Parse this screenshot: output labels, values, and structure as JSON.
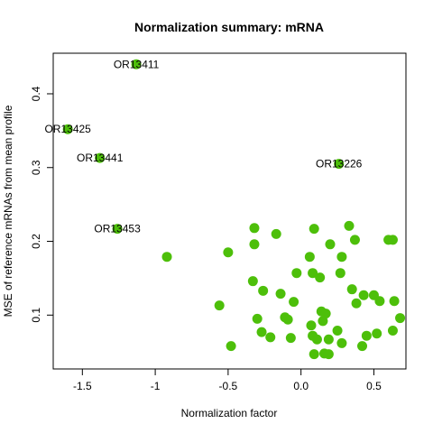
{
  "chart_data": {
    "type": "scatter",
    "title": "Normalization summary: mRNA",
    "xlabel": "Normalization factor",
    "ylabel": "MSE of reference mRNAs from mean profile",
    "xlim": [
      -1.7,
      0.72
    ],
    "ylim": [
      0.027,
      0.455
    ],
    "xticks": [
      "-1.5",
      "-1",
      "-0.5",
      "0.0",
      "0.5"
    ],
    "yticks": [
      "0.1",
      "0.2",
      "0.3",
      "0.4"
    ],
    "grid": false,
    "point_color": "#4dbf0a",
    "labeled_points": [
      {
        "x": -1.13,
        "y": 0.44,
        "label": "OR13411"
      },
      {
        "x": -1.6,
        "y": 0.352,
        "label": "OR13425"
      },
      {
        "x": -1.38,
        "y": 0.313,
        "label": "OR13441"
      },
      {
        "x": 0.26,
        "y": 0.305,
        "label": "OR13226"
      },
      {
        "x": -1.26,
        "y": 0.217,
        "label": "OR13453"
      }
    ],
    "points": [
      {
        "x": -0.92,
        "y": 0.179
      },
      {
        "x": -0.56,
        "y": 0.113
      },
      {
        "x": -0.5,
        "y": 0.185
      },
      {
        "x": -0.48,
        "y": 0.058
      },
      {
        "x": -0.33,
        "y": 0.146
      },
      {
        "x": -0.32,
        "y": 0.218
      },
      {
        "x": -0.32,
        "y": 0.196
      },
      {
        "x": -0.3,
        "y": 0.095
      },
      {
        "x": -0.27,
        "y": 0.077
      },
      {
        "x": -0.26,
        "y": 0.133
      },
      {
        "x": -0.21,
        "y": 0.07
      },
      {
        "x": -0.17,
        "y": 0.21
      },
      {
        "x": -0.14,
        "y": 0.129
      },
      {
        "x": -0.11,
        "y": 0.097
      },
      {
        "x": -0.09,
        "y": 0.094
      },
      {
        "x": -0.07,
        "y": 0.069
      },
      {
        "x": -0.05,
        "y": 0.118
      },
      {
        "x": -0.03,
        "y": 0.157
      },
      {
        "x": 0.06,
        "y": 0.179
      },
      {
        "x": 0.07,
        "y": 0.086
      },
      {
        "x": 0.08,
        "y": 0.157
      },
      {
        "x": 0.09,
        "y": 0.217
      },
      {
        "x": 0.08,
        "y": 0.072
      },
      {
        "x": 0.09,
        "y": 0.047
      },
      {
        "x": 0.11,
        "y": 0.067
      },
      {
        "x": 0.13,
        "y": 0.151
      },
      {
        "x": 0.14,
        "y": 0.105
      },
      {
        "x": 0.15,
        "y": 0.092
      },
      {
        "x": 0.16,
        "y": 0.048
      },
      {
        "x": 0.17,
        "y": 0.102
      },
      {
        "x": 0.19,
        "y": 0.047
      },
      {
        "x": 0.19,
        "y": 0.067
      },
      {
        "x": 0.2,
        "y": 0.196
      },
      {
        "x": 0.25,
        "y": 0.079
      },
      {
        "x": 0.27,
        "y": 0.157
      },
      {
        "x": 0.28,
        "y": 0.179
      },
      {
        "x": 0.28,
        "y": 0.062
      },
      {
        "x": 0.33,
        "y": 0.221
      },
      {
        "x": 0.35,
        "y": 0.135
      },
      {
        "x": 0.37,
        "y": 0.202
      },
      {
        "x": 0.38,
        "y": 0.116
      },
      {
        "x": 0.42,
        "y": 0.058
      },
      {
        "x": 0.43,
        "y": 0.127
      },
      {
        "x": 0.45,
        "y": 0.072
      },
      {
        "x": 0.5,
        "y": 0.127
      },
      {
        "x": 0.52,
        "y": 0.075
      },
      {
        "x": 0.54,
        "y": 0.119
      },
      {
        "x": 0.6,
        "y": 0.202
      },
      {
        "x": 0.63,
        "y": 0.202
      },
      {
        "x": 0.63,
        "y": 0.079
      },
      {
        "x": 0.64,
        "y": 0.119
      },
      {
        "x": 0.68,
        "y": 0.096
      }
    ]
  }
}
